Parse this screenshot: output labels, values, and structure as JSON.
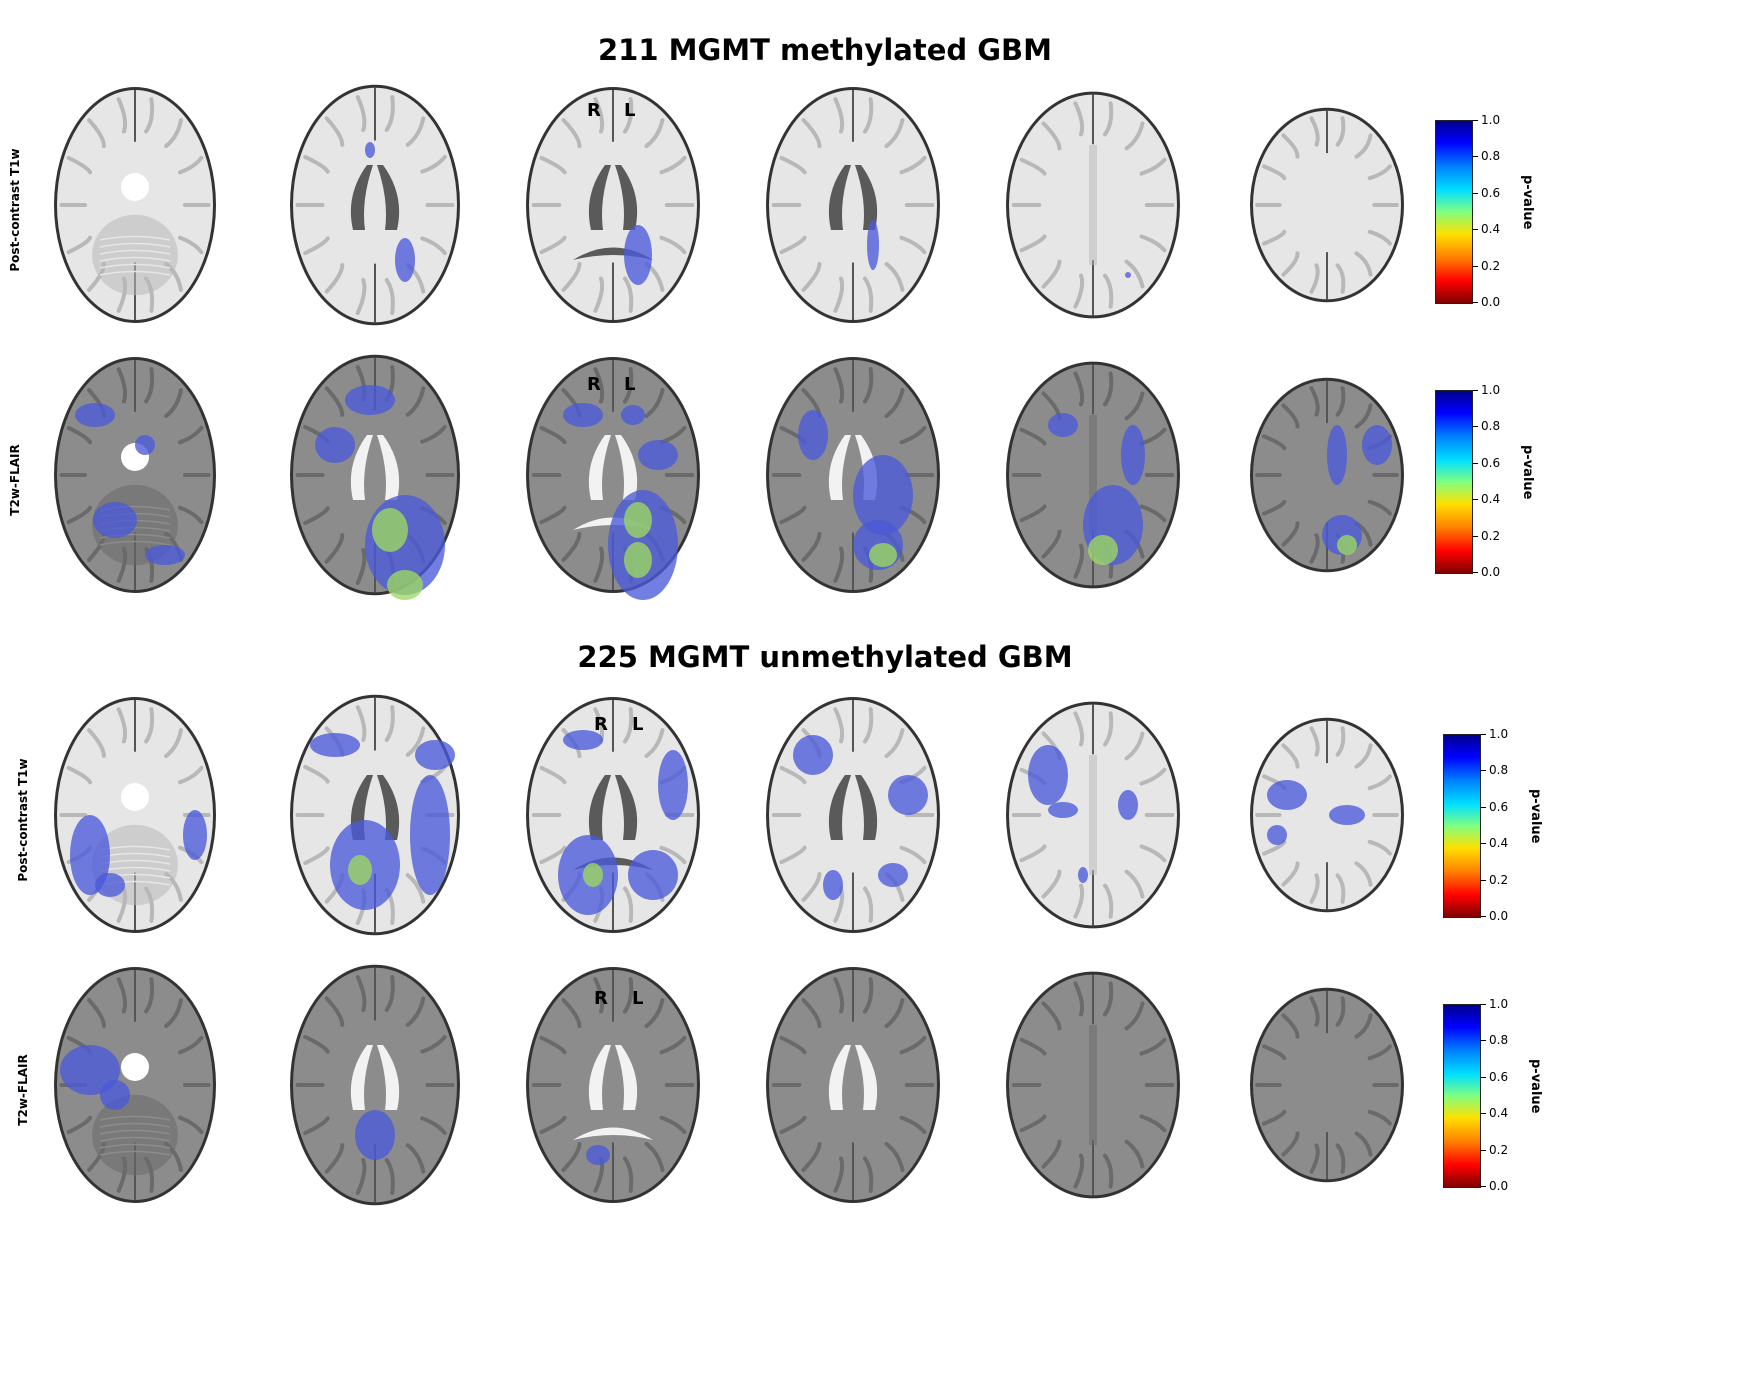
{
  "sections": [
    {
      "title": "211 MGMT methylated GBM",
      "rows": [
        {
          "label": "Post-contrast T1w",
          "modality": "t1"
        },
        {
          "label": "T2w-FLAIR",
          "modality": "flair"
        }
      ]
    },
    {
      "title": "225 MGMT unmethylated GBM",
      "rows": [
        {
          "label": "Post-contrast T1w",
          "modality": "t1"
        },
        {
          "label": "T2w-FLAIR",
          "modality": "flair"
        }
      ]
    }
  ],
  "orientation": {
    "right": "R",
    "left": "L"
  },
  "colorbar": {
    "label": "p-value",
    "ticks": [
      "1.0",
      "0.8",
      "0.6",
      "0.4",
      "0.2",
      "0.0"
    ],
    "colormap": "jet_r",
    "colors": [
      "#00008f",
      "#0000ff",
      "#0080ff",
      "#00e0ff",
      "#80ff80",
      "#ffe000",
      "#ff8000",
      "#ff0000",
      "#7f0000"
    ]
  },
  "colors": {
    "t1_tissue": "#e6e6e6",
    "flair_tissue": "#8c8c8c",
    "overlay_blue": "#4a5ad8",
    "overlay_hot": "#9ed860"
  }
}
